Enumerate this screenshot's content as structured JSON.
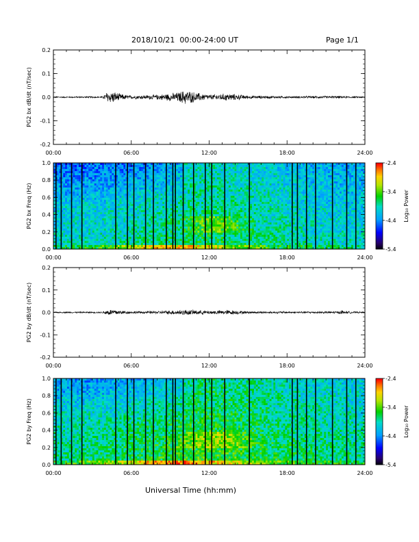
{
  "header": {
    "title": "2018/10/21  00:00-24:00 UT",
    "page": "Page 1/1"
  },
  "footer": {
    "xlabel": "Universal Time (hh:mm)"
  },
  "colors": {
    "trace": "#000000",
    "axis": "#000000",
    "flag_lines": "#000000"
  },
  "chart_data": [
    {
      "type": "line",
      "ylabel": "PG2 bx dB/dt (nT/sec)",
      "x_range": [
        "00:00",
        "24:00"
      ],
      "x_ticks": [
        "00:00",
        "06:00",
        "12:00",
        "18:00",
        "24:00"
      ],
      "ylim": [
        -0.2,
        0.2
      ],
      "y_ticks": [
        "0.2",
        "0.1",
        "0.0",
        "-0.1",
        "-0.2"
      ],
      "envelope": {
        "hours": [
          0,
          3.8,
          4.1,
          4.6,
          5.2,
          6,
          8,
          9.5,
          10.2,
          11,
          12,
          13.5,
          15,
          18,
          22,
          24
        ],
        "amplitude": [
          0.003,
          0.004,
          0.025,
          0.028,
          0.015,
          0.008,
          0.012,
          0.022,
          0.035,
          0.022,
          0.012,
          0.018,
          0.008,
          0.005,
          0.006,
          0.003
        ]
      }
    },
    {
      "type": "heatmap",
      "ylabel": "PG2 bx Freq (Hz)",
      "x_range": [
        "00:00",
        "24:00"
      ],
      "x_ticks": [
        "00:00",
        "06:00",
        "12:00",
        "18:00",
        "24:00"
      ],
      "ylim": [
        0.0,
        1.0
      ],
      "y_ticks": [
        "1.0",
        "0.8",
        "0.6",
        "0.4",
        "0.2",
        "0.0"
      ],
      "colorbar": {
        "label": "Log₁₀ Power",
        "ticks": [
          "-2.4",
          "-3.4",
          "-4.4",
          "-5.4"
        ],
        "range": [
          -5.4,
          -2.4
        ]
      },
      "data_gap_hours": [
        0.2,
        0.6,
        1.4,
        2.2,
        4.8,
        5.7,
        6.2,
        7.1,
        7.7,
        8.7,
        9.2,
        9.4,
        10.0,
        10.8,
        11.7,
        12.2,
        13.2,
        15.1,
        18.4,
        18.8,
        19.5,
        20.2,
        21.5,
        22.6,
        23.3
      ]
    },
    {
      "type": "line",
      "ylabel": "PG2 by dB/dt (nT/sec)",
      "x_range": [
        "00:00",
        "24:00"
      ],
      "x_ticks": [
        "00:00",
        "06:00",
        "12:00",
        "18:00",
        "24:00"
      ],
      "ylim": [
        -0.2,
        0.2
      ],
      "y_ticks": [
        "0.2",
        "0.1",
        "0.0",
        "-0.1",
        "-0.2"
      ],
      "envelope": {
        "hours": [
          0,
          3.8,
          4.1,
          4.6,
          5.2,
          6,
          8,
          9.5,
          10.2,
          11,
          12,
          13.5,
          15,
          18,
          22,
          22.2,
          22.5,
          24
        ],
        "amplitude": [
          0.003,
          0.004,
          0.014,
          0.016,
          0.01,
          0.006,
          0.007,
          0.012,
          0.014,
          0.012,
          0.009,
          0.012,
          0.006,
          0.005,
          0.006,
          0.012,
          0.006,
          0.003
        ]
      }
    },
    {
      "type": "heatmap",
      "ylabel": "PG2 by Freq (Hz)",
      "x_range": [
        "00:00",
        "24:00"
      ],
      "x_ticks": [
        "00:00",
        "06:00",
        "12:00",
        "18:00",
        "24:00"
      ],
      "ylim": [
        0.0,
        1.0
      ],
      "y_ticks": [
        "1.0",
        "0.8",
        "0.6",
        "0.4",
        "0.2",
        "0.0"
      ],
      "colorbar": {
        "label": "Log₁₀ Power",
        "ticks": [
          "-2.4",
          "-3.4",
          "-4.4",
          "-5.4"
        ],
        "range": [
          -5.4,
          -2.4
        ]
      },
      "data_gap_hours": [
        0.2,
        0.6,
        1.4,
        2.2,
        4.8,
        5.7,
        6.2,
        7.1,
        7.7,
        8.7,
        9.2,
        9.4,
        10.0,
        10.8,
        11.7,
        12.2,
        13.2,
        15.1,
        18.4,
        18.8,
        19.5,
        20.2,
        21.5,
        22.6,
        23.3
      ]
    }
  ]
}
